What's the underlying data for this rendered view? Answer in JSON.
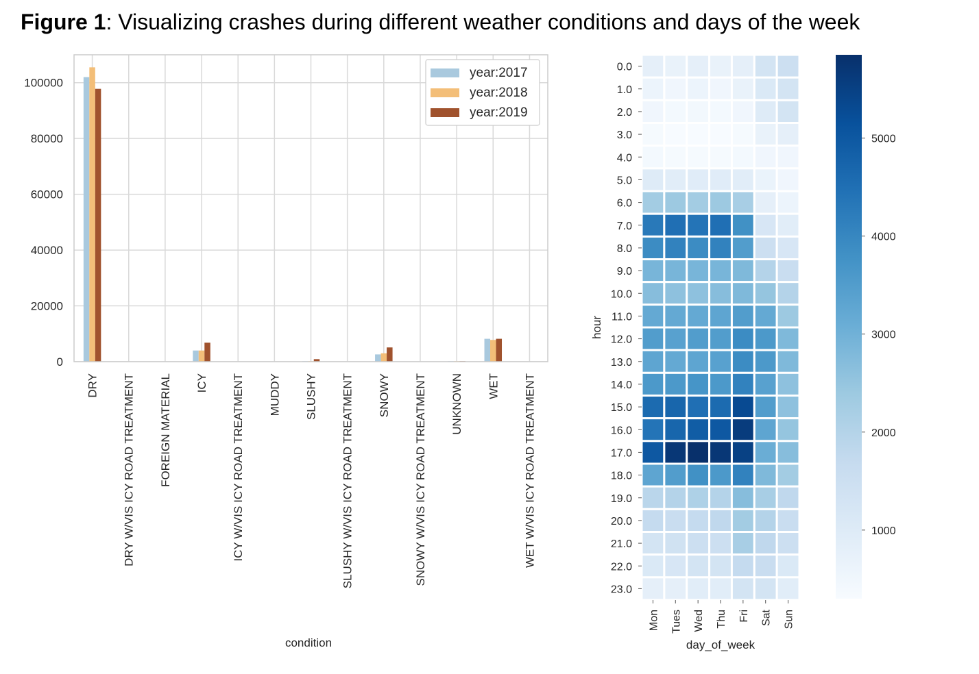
{
  "figure": {
    "label": "Figure 1",
    "caption": ": Visualizing crashes during different weather conditions and days of the week"
  },
  "chart_data": [
    {
      "type": "bar",
      "xlabel": "condition",
      "ylabel": "",
      "ylim": [
        0,
        110000
      ],
      "yticks": [
        0,
        20000,
        40000,
        60000,
        80000,
        100000
      ],
      "grid": true,
      "legend_placement": "top-right",
      "categories": [
        "DRY",
        "DRY W/VIS ICY ROAD TREATMENT",
        "FOREIGN MATERIAL",
        "ICY",
        "ICY W/VIS ICY ROAD TREATMENT",
        "MUDDY",
        "SLUSHY",
        "SLUSHY W/VIS ICY ROAD TREATMENT",
        "SNOWY",
        "SNOWY W/VIS ICY ROAD TREATMENT",
        "UNKNOWN",
        "WET",
        "WET W/VIS ICY ROAD TREATMENT"
      ],
      "series": [
        {
          "name": "year:2017",
          "color": "#a9c9de",
          "values": [
            102000,
            20,
            30,
            4000,
            20,
            20,
            200,
            10,
            2600,
            10,
            200,
            8200,
            10
          ]
        },
        {
          "name": "year:2018",
          "color": "#f3be78",
          "values": [
            105500,
            20,
            30,
            4000,
            20,
            20,
            200,
            10,
            3000,
            10,
            200,
            7800,
            10
          ]
        },
        {
          "name": "year:2019",
          "color": "#a0522d",
          "values": [
            97800,
            20,
            30,
            6800,
            20,
            20,
            900,
            10,
            5100,
            10,
            200,
            8200,
            10
          ]
        }
      ]
    },
    {
      "type": "heatmap",
      "xlabel": "day_of_week",
      "ylabel": "hour",
      "x": [
        "Mon",
        "Tues",
        "Wed",
        "Thu",
        "Fri",
        "Sat",
        "Sun"
      ],
      "y": [
        "0.0",
        "1.0",
        "2.0",
        "3.0",
        "4.0",
        "5.0",
        "6.0",
        "7.0",
        "8.0",
        "9.0",
        "10.0",
        "11.0",
        "12.0",
        "13.0",
        "14.0",
        "15.0",
        "16.0",
        "17.0",
        "18.0",
        "19.0",
        "20.0",
        "21.0",
        "22.0",
        "23.0"
      ],
      "colormap": "Blues",
      "vmin": 300,
      "vmax": 5850,
      "colorbar_ticks": [
        1000,
        2000,
        3000,
        4000,
        5000
      ],
      "values": [
        [
          800,
          700,
          800,
          700,
          800,
          1300,
          1500
        ],
        [
          600,
          500,
          600,
          500,
          700,
          1100,
          1300
        ],
        [
          500,
          400,
          450,
          400,
          500,
          1000,
          1300
        ],
        [
          350,
          300,
          300,
          300,
          350,
          700,
          800
        ],
        [
          400,
          350,
          350,
          350,
          400,
          500,
          500
        ],
        [
          1000,
          900,
          950,
          950,
          900,
          650,
          500
        ],
        [
          2300,
          2400,
          2300,
          2400,
          2200,
          800,
          600
        ],
        [
          4300,
          4500,
          4400,
          4500,
          3800,
          1200,
          900
        ],
        [
          3900,
          4100,
          3900,
          4100,
          3500,
          1500,
          1200
        ],
        [
          2900,
          2900,
          2900,
          2900,
          2800,
          2000,
          1600
        ],
        [
          2700,
          2600,
          2600,
          2700,
          2800,
          2500,
          2000
        ],
        [
          3200,
          3200,
          3200,
          3300,
          3500,
          3200,
          2400
        ],
        [
          3500,
          3400,
          3500,
          3500,
          3900,
          3600,
          2800
        ],
        [
          3300,
          3200,
          3300,
          3400,
          3900,
          3600,
          2800
        ],
        [
          3600,
          3600,
          3700,
          3600,
          4100,
          3400,
          2600
        ],
        [
          4600,
          4700,
          4500,
          4600,
          5300,
          3500,
          2600
        ],
        [
          4400,
          4700,
          4900,
          5000,
          5600,
          3300,
          2500
        ],
        [
          5000,
          5700,
          5850,
          5700,
          5500,
          3100,
          2700
        ],
        [
          3300,
          3500,
          3800,
          3600,
          4100,
          2800,
          2300
        ],
        [
          1900,
          2000,
          2100,
          2000,
          2700,
          2200,
          1800
        ],
        [
          1700,
          1600,
          1700,
          1800,
          2300,
          2000,
          1600
        ],
        [
          1300,
          1400,
          1500,
          1500,
          2200,
          1800,
          1500
        ],
        [
          1100,
          1200,
          1300,
          1300,
          1700,
          1600,
          1100
        ],
        [
          800,
          800,
          900,
          900,
          1300,
          1300,
          900
        ]
      ]
    }
  ]
}
